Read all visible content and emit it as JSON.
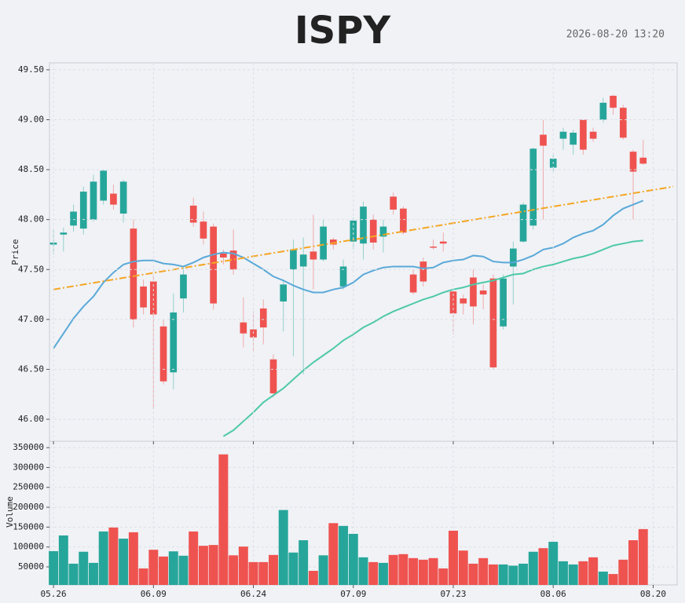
{
  "chart_data": [
    {
      "type": "candlestick",
      "title": "ISPY",
      "subtitle": "2026-08-20 13:20",
      "ylabel": "Price",
      "up_color": "#26a69a",
      "down_color": "#ef5350",
      "open": [
        47.75,
        47.85,
        47.94,
        47.91,
        48.0,
        48.19,
        48.26,
        48.06,
        47.91,
        47.33,
        47.38,
        46.93,
        46.47,
        47.21,
        48.14,
        47.98,
        47.93,
        47.66,
        47.69,
        46.97,
        46.9,
        47.11,
        46.6,
        47.18,
        47.5,
        47.53,
        47.68,
        47.6,
        47.8,
        47.33,
        47.78,
        47.76,
        48.0,
        47.83,
        48.23,
        48.11,
        47.45,
        47.58,
        47.73,
        47.78,
        47.28,
        47.21,
        47.42,
        47.29,
        47.41,
        46.93,
        47.53,
        47.78,
        47.94,
        48.85,
        48.52,
        48.81,
        48.75,
        49.0,
        48.88,
        49.0,
        49.24,
        49.12,
        48.68,
        48.62
      ],
      "high": [
        47.9,
        47.92,
        48.15,
        48.33,
        48.45,
        48.5,
        48.35,
        48.4,
        48.0,
        47.4,
        47.45,
        47.0,
        47.26,
        47.52,
        48.22,
        48.08,
        47.96,
        47.7,
        47.9,
        47.22,
        47.08,
        47.2,
        46.65,
        47.4,
        47.8,
        47.82,
        48.05,
        48.0,
        47.82,
        47.6,
        48.02,
        48.18,
        48.05,
        48.0,
        48.27,
        48.13,
        47.5,
        47.62,
        47.8,
        47.87,
        47.3,
        47.25,
        47.5,
        47.35,
        47.45,
        47.45,
        47.78,
        48.17,
        48.72,
        49.0,
        48.65,
        48.92,
        48.9,
        49.0,
        48.92,
        49.22,
        49.25,
        49.15,
        48.7,
        48.8
      ],
      "low": [
        47.65,
        47.68,
        47.88,
        47.85,
        47.98,
        48.15,
        48.1,
        47.97,
        46.92,
        47.05,
        46.1,
        46.35,
        46.3,
        47.07,
        47.93,
        47.75,
        47.1,
        47.55,
        47.45,
        46.72,
        46.68,
        46.75,
        46.22,
        46.88,
        46.63,
        46.45,
        47.3,
        47.58,
        47.7,
        47.3,
        47.7,
        47.6,
        47.7,
        47.67,
        48.05,
        47.85,
        47.25,
        47.33,
        47.7,
        47.68,
        46.85,
        47.05,
        46.95,
        47.1,
        46.5,
        46.9,
        47.15,
        47.77,
        47.9,
        48.0,
        48.48,
        48.7,
        48.65,
        48.65,
        48.78,
        48.97,
        49.05,
        48.8,
        48.0,
        48.55
      ],
      "close": [
        47.77,
        47.87,
        48.08,
        48.28,
        48.38,
        48.49,
        48.15,
        48.38,
        47.0,
        47.12,
        47.05,
        46.38,
        47.07,
        47.45,
        47.97,
        47.81,
        47.16,
        47.62,
        47.5,
        46.86,
        46.82,
        46.92,
        46.26,
        47.35,
        47.7,
        47.65,
        47.6,
        47.93,
        47.75,
        47.53,
        47.99,
        48.13,
        47.77,
        47.93,
        48.1,
        47.87,
        47.27,
        47.38,
        47.72,
        47.76,
        47.06,
        47.16,
        47.13,
        47.25,
        46.52,
        47.41,
        47.71,
        48.15,
        48.71,
        48.74,
        48.61,
        48.88,
        48.87,
        48.7,
        48.81,
        49.17,
        49.12,
        48.82,
        48.48,
        48.56
      ],
      "series": [
        {
          "color": "#5aa9d8",
          "values": [
            46.71,
            46.86,
            47.01,
            47.13,
            47.23,
            47.37,
            47.47,
            47.55,
            47.58,
            47.59,
            47.59,
            47.56,
            47.55,
            47.53,
            47.57,
            47.62,
            47.65,
            47.67,
            47.66,
            47.62,
            47.56,
            47.5,
            47.43,
            47.39,
            47.34,
            47.3,
            47.27,
            47.27,
            47.3,
            47.32,
            47.37,
            47.45,
            47.49,
            47.52,
            47.53,
            47.53,
            47.53,
            47.51,
            47.52,
            47.57,
            47.59,
            47.6,
            47.64,
            47.63,
            47.58,
            47.57,
            47.57,
            47.6,
            47.64,
            47.7,
            47.72,
            47.76,
            47.82,
            47.86,
            47.89,
            47.95,
            48.04,
            48.11,
            48.15,
            48.19
          ]
        },
        {
          "color": "#4ec9a8",
          "values": [
            null,
            null,
            null,
            null,
            null,
            null,
            null,
            null,
            null,
            null,
            null,
            null,
            null,
            null,
            null,
            null,
            null,
            45.83,
            45.89,
            45.98,
            46.07,
            46.17,
            46.24,
            46.31,
            46.4,
            46.49,
            46.57,
            46.64,
            46.71,
            46.79,
            46.85,
            46.92,
            46.97,
            47.03,
            47.08,
            47.12,
            47.16,
            47.2,
            47.23,
            47.27,
            47.3,
            47.32,
            47.35,
            47.37,
            47.39,
            47.42,
            47.45,
            47.46,
            47.5,
            47.53,
            47.55,
            47.58,
            47.61,
            47.63,
            47.66,
            47.7,
            47.74,
            47.76,
            47.78,
            47.79
          ]
        }
      ],
      "trendline": {
        "color": "#f5a623",
        "x": [
          0,
          62
        ],
        "values": [
          47.3,
          48.33
        ]
      },
      "ylim": [
        45.78,
        49.57
      ],
      "yticks": [
        {
          "value": 46,
          "label": "46.00"
        },
        {
          "value": 46.5,
          "label": "46.50"
        },
        {
          "value": 47,
          "label": "47.00"
        },
        {
          "value": 47.5,
          "label": "47.50"
        },
        {
          "value": 48,
          "label": "48.00"
        },
        {
          "value": 48.5,
          "label": "48.50"
        },
        {
          "value": 49,
          "label": "49.00"
        },
        {
          "value": 49.5,
          "label": "49.50"
        }
      ],
      "grid": true
    },
    {
      "type": "bar",
      "ylabel": "Volume",
      "values": [
        89500,
        129000,
        58000,
        88000,
        60000,
        139000,
        149000,
        121000,
        137000,
        46000,
        93000,
        76000,
        89000,
        78000,
        139000,
        103000,
        105000,
        333000,
        79000,
        101000,
        62000,
        62000,
        80000,
        193000,
        86000,
        117000,
        40000,
        79000,
        160000,
        153000,
        133000,
        74000,
        62000,
        60000,
        80000,
        82000,
        72000,
        68000,
        72000,
        46000,
        141000,
        91000,
        58000,
        72000,
        56000,
        56000,
        53000,
        58000,
        88000,
        97000,
        113000,
        64000,
        56000,
        64000,
        74000,
        38000,
        32000,
        68000,
        117000,
        145000
      ],
      "ylim": [
        4500,
        366000
      ],
      "yticks": [
        50000,
        100000,
        150000,
        200000,
        250000,
        300000,
        350000
      ],
      "xlim": [
        -0.4,
        62.4
      ],
      "xticks": [
        {
          "value": 0,
          "label": "05.26"
        },
        {
          "value": 10,
          "label": "06.09"
        },
        {
          "value": 20,
          "label": "06.24"
        },
        {
          "value": 30,
          "label": "07.09"
        },
        {
          "value": 40,
          "label": "07.23"
        },
        {
          "value": 50,
          "label": "08.06"
        },
        {
          "value": 60,
          "label": "08.20"
        }
      ],
      "grid": true
    }
  ]
}
